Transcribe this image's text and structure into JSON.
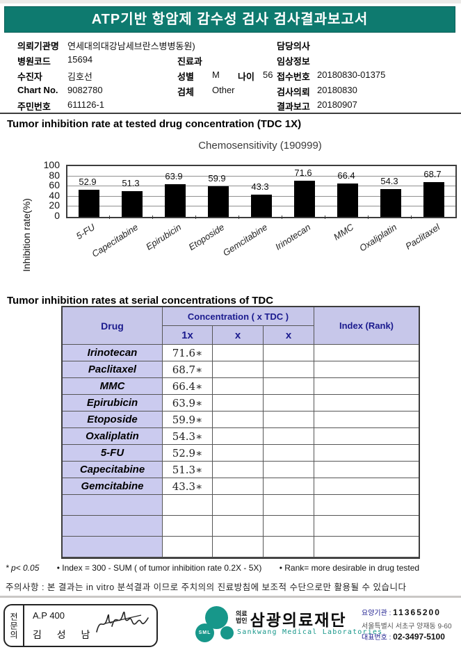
{
  "header": {
    "title": "ATP기반 항암제 감수성 검사 검사결과보고서"
  },
  "patient": {
    "labels": {
      "institution": "의뢰기관명",
      "hospital_code": "병원코드",
      "patient": "수진자",
      "chart_no": "Chart No.",
      "resident_no": "주민번호",
      "department": "진료과",
      "sex": "성별",
      "age": "나이",
      "specimen": "검체",
      "doctor": "담당의사",
      "clinical_info": "임상정보",
      "receipt_no": "접수번호",
      "request_date": "검사의뢰",
      "report_date": "결과보고"
    },
    "values": {
      "institution": "연세대의대강남세브란스병병동원)",
      "hospital_code": "15694",
      "patient": "김호선",
      "chart_no": "9082780",
      "resident_no": "611126-1",
      "department": "",
      "sex": "M",
      "age": "56",
      "specimen": "Other",
      "doctor": "",
      "clinical_info": "",
      "receipt_no": "20180830-01375",
      "request_date": "20180830",
      "report_date": "20180907"
    }
  },
  "sections": {
    "tdc_title": "Tumor inhibition rate at tested drug concentration (TDC 1X)",
    "serial_title": "Tumor inhibition rates at serial concentrations of TDC"
  },
  "chart_data": {
    "type": "bar",
    "title": "Chemosensitivity (190999)",
    "categories": [
      "5-FU",
      "Capecitabine",
      "Epirubicin",
      "Etoposide",
      "Gemcitabine",
      "Irinotecan",
      "MMC",
      "Oxaliplatin",
      "Paclitaxel"
    ],
    "values": [
      52.9,
      51.3,
      63.9,
      59.9,
      43.3,
      71.6,
      66.4,
      54.3,
      68.7
    ],
    "xlabel": "",
    "ylabel": "Inhibition rate(%)",
    "ylim": [
      0,
      100
    ],
    "yticks": [
      0,
      20,
      40,
      60,
      80,
      100
    ],
    "bar_color": "#000000",
    "grid": true,
    "legend": "none"
  },
  "table": {
    "header": {
      "drug": "Drug",
      "concentration": "Concentration ( x TDC )",
      "sub": [
        "1x",
        "x",
        "x"
      ],
      "index": "Index (Rank)"
    },
    "rows": [
      {
        "drug": "Irinotecan",
        "c1": "71.6∗",
        "c2": "",
        "c3": "",
        "index": ""
      },
      {
        "drug": "Paclitaxel",
        "c1": "68.7∗",
        "c2": "",
        "c3": "",
        "index": ""
      },
      {
        "drug": "MMC",
        "c1": "66.4∗",
        "c2": "",
        "c3": "",
        "index": ""
      },
      {
        "drug": "Epirubicin",
        "c1": "63.9∗",
        "c2": "",
        "c3": "",
        "index": ""
      },
      {
        "drug": "Etoposide",
        "c1": "59.9∗",
        "c2": "",
        "c3": "",
        "index": ""
      },
      {
        "drug": "Oxaliplatin",
        "c1": "54.3∗",
        "c2": "",
        "c3": "",
        "index": ""
      },
      {
        "drug": "5-FU",
        "c1": "52.9∗",
        "c2": "",
        "c3": "",
        "index": ""
      },
      {
        "drug": "Capecitabine",
        "c1": "51.3∗",
        "c2": "",
        "c3": "",
        "index": ""
      },
      {
        "drug": "Gemcitabine",
        "c1": "43.3∗",
        "c2": "",
        "c3": "",
        "index": ""
      },
      {
        "drug": "",
        "c1": "",
        "c2": "",
        "c3": "",
        "index": ""
      },
      {
        "drug": "",
        "c1": "",
        "c2": "",
        "c3": "",
        "index": ""
      },
      {
        "drug": "",
        "c1": "",
        "c2": "",
        "c3": "",
        "index": ""
      }
    ]
  },
  "footnotes": {
    "sig": "* p< 0.05",
    "index": "• Index = 300 - SUM ( of tumor inhibition rate 0.2X  -  5X)",
    "rank": "• Rank= more desirable in drug tested"
  },
  "caution": "주의사항 : 본 결과는 in vitro 분석결과 이므로 주치의의 진료방침에 보조적 수단으로만 활용될 수 있습니다",
  "footer": {
    "signature": {
      "role": "전문의",
      "code": "A.P 400",
      "name": "김 성 남"
    },
    "logo": {
      "mark": "SML",
      "org_type_line1": "의료",
      "org_type_line2": "법인",
      "org_name": "삼광의료재단",
      "org_en": "Sankwang Medical Laboratories"
    },
    "contact": {
      "line1_label": "요양기관",
      "line1_value": "11365200",
      "line2": "서울특별시 서초구 양재동 9-60",
      "line3_label": "대표번호",
      "line3_value": "02-3497-5100"
    }
  },
  "colors": {
    "banner_teal": "#0e7a6f",
    "table_header_bg": "#c7c7ea",
    "table_header_text": "#1b1b8e",
    "bar_black": "#000000",
    "logo_teal": "#17978a"
  }
}
